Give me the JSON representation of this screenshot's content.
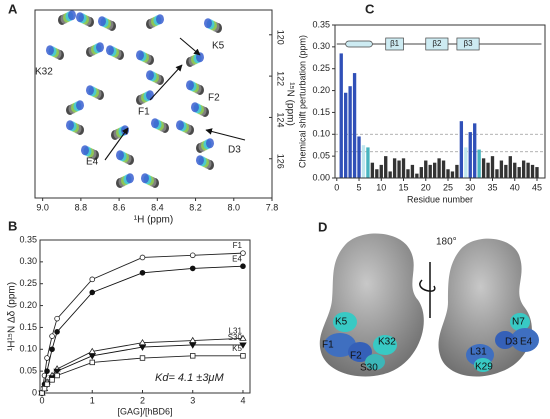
{
  "chart_data": [
    {
      "type": "spectrum",
      "panel": "A",
      "xlabel": "¹H (ppm)",
      "ylabel": "¹⁵N (ppm)",
      "xlim": [
        9.04,
        7.8
      ],
      "ylim": [
        118.8,
        127.9
      ],
      "xticks": [
        {
          "value": 9,
          "label": "9.0"
        },
        8.8,
        8.6,
        8.4,
        8.2,
        {
          "value": 8,
          "label": "8.0"
        },
        7.8
      ],
      "yticks": [
        120,
        122,
        124,
        126
      ],
      "peak_labels": [
        "K32",
        "K5",
        "F1",
        "F2",
        "D3",
        "E4"
      ]
    },
    {
      "type": "line",
      "panel": "B",
      "xlabel": "[GAG]/[hBD6]",
      "ylabel": "¹H¹⁵N Δδ (ppm)",
      "annotation": "Kd= 4.1 ±3μM",
      "x": [
        0,
        0.05,
        0.1,
        0.2,
        0.3,
        1,
        2,
        3,
        4
      ],
      "xlim": [
        -0.04,
        4.14
      ],
      "ylim": [
        0,
        0.35
      ],
      "xticks": [
        0,
        1,
        2,
        3,
        4
      ],
      "yticks": [
        0,
        0.05,
        {
          "value": 0.1,
          "label": "0.10"
        },
        0.15,
        {
          "value": 0.2,
          "label": "0.20"
        },
        0.25,
        {
          "value": 0.3,
          "label": "0.30"
        },
        0.35
      ],
      "series": [
        {
          "name": "F1",
          "marker": "circle-open",
          "color": "#222",
          "values": [
            0,
            0.04,
            0.08,
            0.13,
            0.17,
            0.26,
            0.31,
            0.315,
            0.32
          ]
        },
        {
          "name": "E4",
          "marker": "circle",
          "color": "#111",
          "values": [
            0,
            0.02,
            0.05,
            0.1,
            0.14,
            0.23,
            0.275,
            0.285,
            0.29
          ]
        },
        {
          "name": "L31",
          "marker": "triangle-open",
          "color": "#222",
          "values": [
            0,
            0.01,
            0.025,
            0.04,
            0.055,
            0.095,
            0.115,
            0.12,
            0.125
          ]
        },
        {
          "name": "S30",
          "marker": "triangle-down",
          "color": "#111",
          "values": [
            0,
            0.01,
            0.02,
            0.035,
            0.05,
            0.085,
            0.105,
            0.11,
            0.11
          ]
        },
        {
          "name": "K5",
          "marker": "square-open",
          "color": "#222",
          "values": [
            0,
            0.01,
            0.02,
            0.03,
            0.04,
            0.07,
            0.08,
            0.085,
            0.085
          ]
        }
      ]
    },
    {
      "type": "bar",
      "panel": "C",
      "xlabel": "Residue number",
      "ylabel": "Chemical shift perturbation (ppm)",
      "x": [
        1,
        2,
        3,
        4,
        5,
        6,
        7,
        8,
        9,
        10,
        11,
        12,
        13,
        14,
        15,
        16,
        17,
        18,
        19,
        20,
        21,
        22,
        23,
        24,
        25,
        26,
        27,
        28,
        29,
        30,
        31,
        32,
        33,
        34,
        35,
        36,
        37,
        38,
        39,
        40,
        41,
        42,
        43,
        44,
        45
      ],
      "values": [
        0.285,
        0.195,
        0.21,
        0.24,
        0.095,
        0.075,
        0.07,
        0.035,
        0.02,
        0.03,
        0.05,
        0.015,
        0.045,
        0.04,
        0.045,
        0.02,
        0.03,
        0.01,
        0.025,
        0.04,
        0.03,
        0.035,
        0.045,
        0.04,
        0.02,
        0.015,
        0.03,
        0.13,
        0.07,
        0.105,
        0.125,
        0.065,
        0.045,
        0.035,
        0.05,
        0.02,
        0.04,
        0.03,
        0.05,
        0.035,
        0.025,
        0.04,
        0.035,
        0.03,
        0.025
      ],
      "colors": [
        "#3050b8",
        "#3050b8",
        "#3050b8",
        "#3050b8",
        "#3050b8",
        "#bfe6ee",
        "#48b4bf",
        "#333",
        "#333",
        "#333",
        "#333",
        "#333",
        "#333",
        "#333",
        "#333",
        "#333",
        "#333",
        "#333",
        "#333",
        "#333",
        "#333",
        "#333",
        "#333",
        "#333",
        "#333",
        "#333",
        "#333",
        "#3050b8",
        "#bfe6ee",
        "#3050b8",
        "#3050b8",
        "#48b4bf",
        "#333",
        "#333",
        "#333",
        "#333",
        "#333",
        "#333",
        "#333",
        "#333",
        "#333",
        "#333",
        "#333",
        "#333",
        "#333"
      ],
      "hlines": [
        0.1,
        0.06
      ],
      "xlim": [
        -0.4,
        46.8
      ],
      "ylim": [
        0,
        0.35
      ],
      "xticks": [
        0,
        5,
        10,
        15,
        20,
        25,
        30,
        35,
        40,
        45
      ],
      "yticks": [
        {
          "value": 0,
          "label": "0.00"
        },
        0.05,
        {
          "value": 0.1,
          "label": "0.10"
        },
        0.15,
        {
          "value": 0.2,
          "label": "0.20"
        },
        0.25,
        {
          "value": 0.3,
          "label": "0.30"
        },
        0.35
      ],
      "secondary_structure": [
        {
          "kind": "helix",
          "start": 2,
          "end": 8
        },
        {
          "kind": "strand",
          "label": "β1",
          "start": 11,
          "end": 15
        },
        {
          "kind": "strand",
          "label": "β2",
          "start": 20,
          "end": 25
        },
        {
          "kind": "strand",
          "label": "β3",
          "start": 27,
          "end": 32
        }
      ]
    }
  ],
  "panel_d": {
    "panel": "D",
    "rotation": "180°",
    "left_labels": [
      "K5",
      "F1",
      "F2",
      "K32",
      "S30"
    ],
    "right_labels": [
      "N7",
      "D3",
      "E4",
      "L31",
      "K29"
    ]
  }
}
